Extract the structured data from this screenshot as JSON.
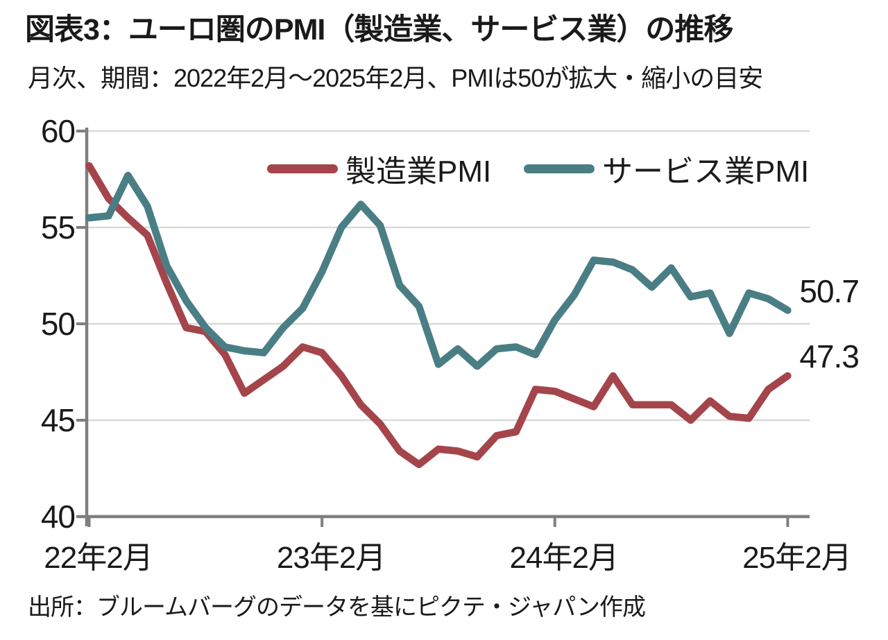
{
  "header": {
    "title": "図表3：ユーロ圏のPMI（製造業、サービス業）の推移",
    "subtitle": "月次、期間：2022年2月～2025年2月、PMIは50が拡大・縮小の目安"
  },
  "footer": {
    "source": "出所：ブルームバーグのデータを基にピクテ・ジャパン作成"
  },
  "colors": {
    "grid": "#d9d9d9",
    "axis": "#7f7f7f",
    "text": "#1a1a1a"
  },
  "chart_data": {
    "type": "line",
    "title": "ユーロ圏のPMI（製造業、サービス業）の推移",
    "x_unit": "month",
    "x": [
      "2022-02",
      "2022-03",
      "2022-04",
      "2022-05",
      "2022-06",
      "2022-07",
      "2022-08",
      "2022-09",
      "2022-10",
      "2022-11",
      "2022-12",
      "2023-01",
      "2023-02",
      "2023-03",
      "2023-04",
      "2023-05",
      "2023-06",
      "2023-07",
      "2023-08",
      "2023-09",
      "2023-10",
      "2023-11",
      "2023-12",
      "2024-01",
      "2024-02",
      "2024-03",
      "2024-04",
      "2024-05",
      "2024-06",
      "2024-07",
      "2024-08",
      "2024-09",
      "2024-10",
      "2024-11",
      "2024-12",
      "2025-01",
      "2025-02"
    ],
    "series": [
      {
        "key": "manufacturing",
        "name": "製造業PMI",
        "color": "#a4454b",
        "end_label": "47.3",
        "values": [
          58.2,
          56.5,
          55.5,
          54.6,
          52.1,
          49.8,
          49.6,
          48.4,
          46.4,
          47.1,
          47.8,
          48.8,
          48.5,
          47.3,
          45.8,
          44.8,
          43.4,
          42.7,
          43.5,
          43.4,
          43.1,
          44.2,
          44.4,
          46.6,
          46.5,
          46.1,
          45.7,
          47.3,
          45.8,
          45.8,
          45.8,
          45.0,
          46.0,
          45.2,
          45.1,
          46.6,
          47.3
        ]
      },
      {
        "key": "services",
        "name": "サービス業PMI",
        "color": "#4a7e85",
        "end_label": "50.7",
        "values": [
          55.5,
          55.6,
          57.7,
          56.1,
          53.0,
          51.2,
          49.8,
          48.8,
          48.6,
          48.5,
          49.8,
          50.8,
          52.7,
          55.0,
          56.2,
          55.1,
          52.0,
          50.9,
          47.9,
          48.7,
          47.8,
          48.7,
          48.8,
          48.4,
          50.2,
          51.5,
          53.3,
          53.2,
          52.8,
          51.9,
          52.9,
          51.4,
          51.6,
          49.5,
          51.6,
          51.3,
          50.7
        ]
      }
    ],
    "ylim": [
      40,
      60
    ],
    "yticks": [
      40,
      45,
      50,
      55,
      60
    ],
    "gridlines": [
      45,
      50,
      55,
      60
    ],
    "xticks": [
      {
        "month_index": 0,
        "label": "22年2月"
      },
      {
        "month_index": 12,
        "label": "23年2月"
      },
      {
        "month_index": 24,
        "label": "24年2月"
      },
      {
        "month_index": 36,
        "label": "25年2月"
      }
    ],
    "legend_position": "top-inside",
    "grid": true
  }
}
